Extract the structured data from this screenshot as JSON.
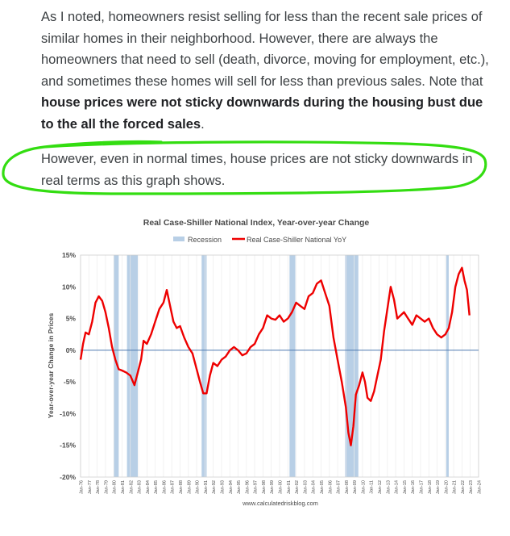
{
  "article": {
    "p1_text": "As I noted, homeowners resist selling for less than the recent sale prices of similar homes in their neighborhood. However, there are always the homeowners that need to sell (death, divorce, moving for employment, etc.), and sometimes these homes will sell for less than previous sales. Note that ",
    "p1_bold": "house prices were not sticky downwards during the housing bust due to the all the forced sales",
    "p1_end": ".",
    "p2_text": "However, even in normal times, house prices are not sticky downwards in real terms as this graph shows."
  },
  "colors": {
    "highlight": "#33dd11",
    "series": "#ee0000",
    "recession": "#b8cfe6",
    "zero_line": "#4f7ab0"
  },
  "chart_data": {
    "type": "line",
    "title": "Real Case-Shiller National Index, Year-over-year Change",
    "ylabel": "Year-over-year Change in Prices",
    "source": "www.calculatedriskblog.com",
    "legend": [
      "Recession",
      "Real Case-Shiller National YoY"
    ],
    "legend_position": "top",
    "ylim": [
      -20,
      15
    ],
    "yticks": [
      "15%",
      "10%",
      "5%",
      "0%",
      "-5%",
      "-10%",
      "-15%",
      "-20%"
    ],
    "xlim": [
      1976.0,
      2024.0
    ],
    "xticks": [
      "Jan-76",
      "Jan-77",
      "Jan-78",
      "Jan-79",
      "Jan-80",
      "Jan-81",
      "Jan-82",
      "Jan-83",
      "Jan-84",
      "Jan-85",
      "Jan-86",
      "Jan-87",
      "Jan-88",
      "Jan-89",
      "Jan-90",
      "Jan-91",
      "Jan-92",
      "Jan-93",
      "Jan-94",
      "Jan-95",
      "Jan-96",
      "Jan-97",
      "Jan-98",
      "Jan-99",
      "Jan-00",
      "Jan-01",
      "Jan-02",
      "Jan-03",
      "Jan-04",
      "Jan-05",
      "Jan-06",
      "Jan-07",
      "Jan-08",
      "Jan-09",
      "Jan-10",
      "Jan-11",
      "Jan-12",
      "Jan-13",
      "Jan-14",
      "Jan-15",
      "Jan-16",
      "Jan-17",
      "Jan-18",
      "Jan-19",
      "Jan-20",
      "Jan-21",
      "Jan-22",
      "Jan-23",
      "Jan-24"
    ],
    "grid": "vertical",
    "recessions": [
      [
        1980.0,
        1980.6
      ],
      [
        1981.6,
        1982.9
      ],
      [
        1990.6,
        1991.2
      ],
      [
        2001.2,
        2001.9
      ],
      [
        2007.9,
        2009.5
      ],
      [
        2020.1,
        2020.4
      ]
    ],
    "series": [
      {
        "name": "Real Case-Shiller National YoY",
        "x": [
          1976.0,
          1976.3,
          1976.6,
          1977.0,
          1977.4,
          1977.8,
          1978.2,
          1978.6,
          1979.0,
          1979.4,
          1979.8,
          1980.2,
          1980.6,
          1981.0,
          1981.5,
          1982.0,
          1982.5,
          1982.9,
          1983.3,
          1983.6,
          1984.0,
          1984.5,
          1985.0,
          1985.5,
          1986.0,
          1986.4,
          1986.8,
          1987.2,
          1987.6,
          1988.0,
          1988.5,
          1989.0,
          1989.5,
          1990.0,
          1990.4,
          1990.8,
          1991.2,
          1991.6,
          1992.0,
          1992.5,
          1993.0,
          1993.5,
          1994.0,
          1994.5,
          1995.0,
          1995.5,
          1996.0,
          1996.5,
          1997.0,
          1997.5,
          1998.0,
          1998.5,
          1999.0,
          1999.5,
          2000.0,
          2000.5,
          2001.0,
          2001.5,
          2002.0,
          2002.5,
          2003.0,
          2003.5,
          2004.0,
          2004.5,
          2005.0,
          2005.5,
          2006.0,
          2006.5,
          2007.0,
          2007.5,
          2008.0,
          2008.3,
          2008.6,
          2008.9,
          2009.2,
          2009.6,
          2010.0,
          2010.3,
          2010.6,
          2011.0,
          2011.4,
          2011.8,
          2012.2,
          2012.6,
          2013.0,
          2013.4,
          2013.8,
          2014.2,
          2014.6,
          2015.0,
          2015.5,
          2016.0,
          2016.5,
          2017.0,
          2017.5,
          2018.0,
          2018.5,
          2019.0,
          2019.5,
          2020.0,
          2020.4,
          2020.8,
          2021.2,
          2021.6,
          2022.0,
          2022.3,
          2022.6,
          2022.9
        ],
        "y": [
          -1.5,
          1.0,
          2.8,
          2.5,
          4.5,
          7.5,
          8.5,
          7.8,
          6.0,
          3.5,
          0.5,
          -1.5,
          -3.0,
          -3.2,
          -3.5,
          -4.0,
          -5.5,
          -3.5,
          -1.5,
          1.5,
          1.0,
          2.5,
          4.5,
          6.5,
          7.5,
          9.5,
          7.0,
          4.5,
          3.5,
          3.8,
          2.0,
          0.5,
          -0.5,
          -3.0,
          -5.0,
          -6.8,
          -6.8,
          -4.0,
          -2.0,
          -2.5,
          -1.5,
          -1.0,
          0.0,
          0.5,
          0.0,
          -0.8,
          -0.5,
          0.5,
          1.0,
          2.5,
          3.5,
          5.5,
          5.0,
          4.8,
          5.5,
          4.5,
          5.0,
          6.0,
          7.5,
          7.0,
          6.5,
          8.5,
          9.0,
          10.5,
          11.0,
          9.0,
          7.0,
          2.0,
          -1.5,
          -5.0,
          -9.0,
          -13.0,
          -15.0,
          -12.0,
          -7.0,
          -5.5,
          -3.5,
          -5.0,
          -7.5,
          -8.0,
          -6.5,
          -4.0,
          -1.5,
          3.0,
          6.5,
          10.0,
          8.0,
          5.0,
          5.5,
          6.0,
          5.0,
          4.0,
          5.5,
          5.0,
          4.5,
          5.0,
          3.5,
          2.5,
          2.0,
          2.5,
          3.5,
          6.0,
          10.0,
          12.0,
          13.0,
          11.0,
          9.5,
          5.5
        ]
      }
    ]
  }
}
